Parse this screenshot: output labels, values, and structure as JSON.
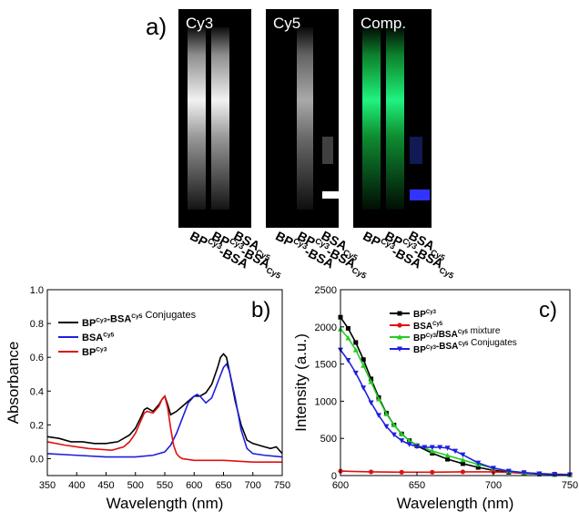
{
  "panel_a": {
    "letter": "a)",
    "gels": [
      {
        "title": "Cy3",
        "color": "white"
      },
      {
        "title": "Cy5",
        "color": "white"
      },
      {
        "title": "Comp.",
        "color": "green-blue"
      }
    ],
    "lane_labels": [
      {
        "main": "BP",
        "sup": "Cy3",
        "tail": "-BSA"
      },
      {
        "main": "BP",
        "sup": "Cy3",
        "tail": "-BSA",
        "sup2": "Cy5"
      },
      {
        "main": "BSA",
        "sup": "",
        "tail": "",
        "sub": "Cy5"
      }
    ]
  },
  "panel_b": {
    "letter": "b)",
    "ylabel": "Absorbance",
    "xlabel": "Wavelength (nm)",
    "legend": [
      {
        "label_main": "BP",
        "label_sup": "Cy3",
        "label_mid": "-BSA",
        "label_sup2": "Cy5",
        "label_tail": " Conjugates",
        "color": "#000000"
      },
      {
        "label_main": "BSA",
        "label_sup": "Cy5",
        "label_mid": "",
        "label_sup2": "",
        "label_tail": "",
        "color": "#1f1fdd"
      },
      {
        "label_main": "BP",
        "label_sup": "Cy3",
        "label_mid": "",
        "label_sup2": "",
        "label_tail": "",
        "color": "#e01010"
      }
    ]
  },
  "panel_c": {
    "letter": "c)",
    "ylabel": "Intensity (a.u.)",
    "xlabel": "Wavelength (nm)",
    "legend": [
      {
        "label_main": "BP",
        "label_sup": "Cy3",
        "label_mid": "",
        "label_sup2": "",
        "label_tail": "",
        "color": "#000000",
        "marker": "square"
      },
      {
        "label_main": "BSA",
        "label_sup": "Cy5",
        "label_mid": "",
        "label_sup2": "",
        "label_tail": "",
        "color": "#e01010",
        "marker": "circle"
      },
      {
        "label_main": "BP",
        "label_sup": "Cy3",
        "label_mid": "/BSA",
        "label_sup2": "Cy5",
        "label_tail": " mixture",
        "color": "#22cc22",
        "marker": "triangle"
      },
      {
        "label_main": "BP",
        "label_sup": "Cy3",
        "label_mid": "-BSA",
        "label_sup2": "Cy5",
        "label_tail": " Conjugates",
        "color": "#1f1fdd",
        "marker": "triangle-down"
      }
    ]
  },
  "chart_data": [
    {
      "type": "line",
      "xlabel": "Wavelength (nm)",
      "ylabel": "Absorbance",
      "xlim": [
        350,
        750
      ],
      "ylim": [
        -0.1,
        1.0
      ],
      "xticks": [
        350,
        400,
        450,
        500,
        550,
        600,
        650,
        700,
        750
      ],
      "yticks": [
        0.0,
        0.2,
        0.4,
        0.6,
        0.8,
        1.0
      ],
      "ytick_labels": [
        "0.0",
        "0.2",
        "0.4",
        "0.6",
        "0.8",
        "1.0"
      ],
      "series": [
        {
          "name": "BP^Cy3-BSA^Cy5 Conjugates",
          "color": "#000000",
          "x": [
            350,
            370,
            390,
            410,
            430,
            450,
            470,
            480,
            490,
            500,
            510,
            515,
            520,
            530,
            540,
            545,
            550,
            555,
            560,
            570,
            580,
            590,
            600,
            610,
            620,
            630,
            640,
            645,
            650,
            655,
            660,
            670,
            680,
            690,
            700,
            710,
            720,
            730,
            740,
            750
          ],
          "y": [
            0.13,
            0.12,
            0.1,
            0.1,
            0.09,
            0.09,
            0.1,
            0.12,
            0.14,
            0.18,
            0.25,
            0.29,
            0.3,
            0.28,
            0.32,
            0.35,
            0.37,
            0.32,
            0.26,
            0.28,
            0.31,
            0.34,
            0.37,
            0.37,
            0.39,
            0.44,
            0.54,
            0.6,
            0.62,
            0.6,
            0.52,
            0.34,
            0.2,
            0.11,
            0.09,
            0.08,
            0.07,
            0.06,
            0.07,
            0.03
          ]
        },
        {
          "name": "BSA^Cy5",
          "color": "#1f1fdd",
          "x": [
            350,
            400,
            450,
            500,
            530,
            550,
            560,
            570,
            580,
            590,
            600,
            605,
            610,
            620,
            630,
            640,
            650,
            655,
            660,
            670,
            680,
            690,
            700,
            720,
            750
          ],
          "y": [
            0.03,
            0.02,
            0.01,
            0.01,
            0.02,
            0.04,
            0.08,
            0.15,
            0.24,
            0.33,
            0.37,
            0.38,
            0.37,
            0.33,
            0.36,
            0.45,
            0.54,
            0.56,
            0.52,
            0.36,
            0.17,
            0.06,
            0.03,
            0.02,
            0.01
          ]
        },
        {
          "name": "BP^Cy3",
          "color": "#e01010",
          "x": [
            350,
            380,
            420,
            460,
            480,
            490,
            500,
            510,
            515,
            520,
            530,
            540,
            545,
            550,
            555,
            560,
            565,
            570,
            575,
            580,
            600,
            650,
            700,
            750
          ],
          "y": [
            0.1,
            0.08,
            0.06,
            0.05,
            0.07,
            0.1,
            0.15,
            0.23,
            0.27,
            0.28,
            0.27,
            0.31,
            0.35,
            0.37,
            0.3,
            0.18,
            0.08,
            0.03,
            0.01,
            0.0,
            -0.01,
            -0.01,
            -0.02,
            -0.02
          ]
        }
      ]
    },
    {
      "type": "line",
      "xlabel": "Wavelength (nm)",
      "ylabel": "Intensity (a.u.)",
      "xlim": [
        600,
        750
      ],
      "ylim": [
        0,
        2500
      ],
      "xticks": [
        600,
        650,
        700,
        750
      ],
      "yticks": [
        0,
        500,
        1000,
        1500,
        2000,
        2500
      ],
      "series": [
        {
          "name": "BP^Cy3",
          "color": "#000000",
          "marker": "square",
          "x": [
            600,
            605,
            610,
            615,
            620,
            625,
            630,
            635,
            640,
            645,
            650,
            660,
            670,
            680,
            690,
            700,
            710,
            720,
            730,
            740,
            750
          ],
          "y": [
            2130,
            1980,
            1790,
            1560,
            1300,
            1050,
            840,
            680,
            560,
            470,
            400,
            300,
            220,
            160,
            110,
            70,
            45,
            30,
            20,
            15,
            10
          ]
        },
        {
          "name": "BSA^Cy5",
          "color": "#e01010",
          "marker": "circle",
          "x": [
            600,
            620,
            640,
            660,
            680,
            700,
            720,
            740,
            750
          ],
          "y": [
            60,
            50,
            45,
            45,
            50,
            50,
            35,
            20,
            15
          ]
        },
        {
          "name": "BP^Cy3/BSA^Cy5 mixture",
          "color": "#22cc22",
          "marker": "triangle",
          "x": [
            600,
            605,
            610,
            615,
            620,
            625,
            630,
            635,
            640,
            645,
            650,
            660,
            670,
            680,
            690,
            700,
            710,
            720,
            730,
            740,
            750
          ],
          "y": [
            1970,
            1850,
            1690,
            1480,
            1260,
            1030,
            830,
            680,
            560,
            470,
            410,
            330,
            270,
            210,
            150,
            100,
            60,
            40,
            25,
            15,
            10
          ]
        },
        {
          "name": "BP^Cy3-BSA^Cy5 Conjugates",
          "color": "#1f1fdd",
          "marker": "triangle-down",
          "x": [
            600,
            605,
            610,
            615,
            620,
            625,
            630,
            635,
            640,
            645,
            650,
            655,
            660,
            665,
            670,
            675,
            680,
            690,
            700,
            710,
            720,
            730,
            740,
            750
          ],
          "y": [
            1690,
            1550,
            1380,
            1180,
            980,
            810,
            660,
            550,
            470,
            420,
            390,
            380,
            380,
            380,
            370,
            330,
            280,
            170,
            100,
            60,
            40,
            25,
            15,
            10
          ]
        }
      ]
    }
  ]
}
